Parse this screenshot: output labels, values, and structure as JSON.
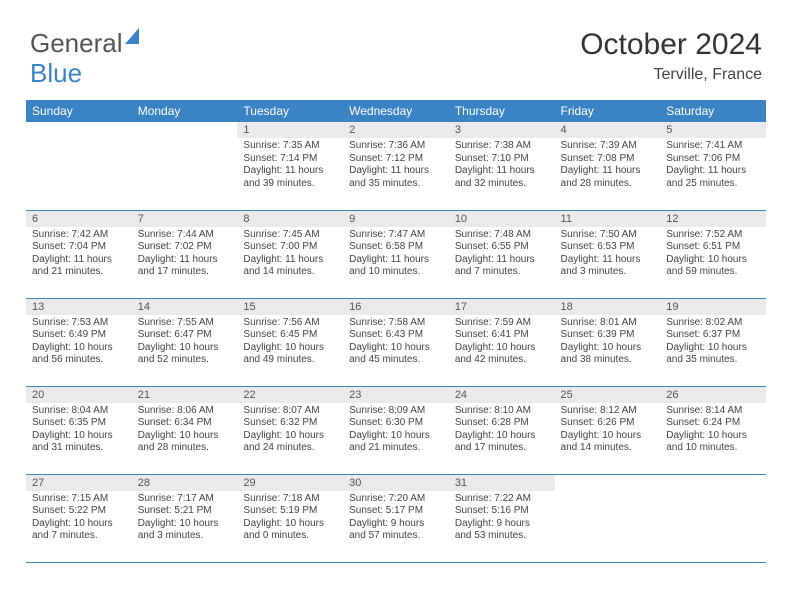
{
  "logo": {
    "part1": "General",
    "part2": "Blue"
  },
  "header": {
    "month_title": "October 2024",
    "location": "Terville, France"
  },
  "colors": {
    "header_bar": "#3a83c5",
    "daynum_bg": "#e9eaec",
    "rule": "#3a83c5",
    "text": "#444444",
    "bg": "#ffffff"
  },
  "day_headers": [
    "Sunday",
    "Monday",
    "Tuesday",
    "Wednesday",
    "Thursday",
    "Friday",
    "Saturday"
  ],
  "weeks": [
    [
      null,
      null,
      {
        "d": "1",
        "sr": "7:35 AM",
        "ss": "7:14 PM",
        "dl": "11 hours and 39 minutes."
      },
      {
        "d": "2",
        "sr": "7:36 AM",
        "ss": "7:12 PM",
        "dl": "11 hours and 35 minutes."
      },
      {
        "d": "3",
        "sr": "7:38 AM",
        "ss": "7:10 PM",
        "dl": "11 hours and 32 minutes."
      },
      {
        "d": "4",
        "sr": "7:39 AM",
        "ss": "7:08 PM",
        "dl": "11 hours and 28 minutes."
      },
      {
        "d": "5",
        "sr": "7:41 AM",
        "ss": "7:06 PM",
        "dl": "11 hours and 25 minutes."
      }
    ],
    [
      {
        "d": "6",
        "sr": "7:42 AM",
        "ss": "7:04 PM",
        "dl": "11 hours and 21 minutes."
      },
      {
        "d": "7",
        "sr": "7:44 AM",
        "ss": "7:02 PM",
        "dl": "11 hours and 17 minutes."
      },
      {
        "d": "8",
        "sr": "7:45 AM",
        "ss": "7:00 PM",
        "dl": "11 hours and 14 minutes."
      },
      {
        "d": "9",
        "sr": "7:47 AM",
        "ss": "6:58 PM",
        "dl": "11 hours and 10 minutes."
      },
      {
        "d": "10",
        "sr": "7:48 AM",
        "ss": "6:55 PM",
        "dl": "11 hours and 7 minutes."
      },
      {
        "d": "11",
        "sr": "7:50 AM",
        "ss": "6:53 PM",
        "dl": "11 hours and 3 minutes."
      },
      {
        "d": "12",
        "sr": "7:52 AM",
        "ss": "6:51 PM",
        "dl": "10 hours and 59 minutes."
      }
    ],
    [
      {
        "d": "13",
        "sr": "7:53 AM",
        "ss": "6:49 PM",
        "dl": "10 hours and 56 minutes."
      },
      {
        "d": "14",
        "sr": "7:55 AM",
        "ss": "6:47 PM",
        "dl": "10 hours and 52 minutes."
      },
      {
        "d": "15",
        "sr": "7:56 AM",
        "ss": "6:45 PM",
        "dl": "10 hours and 49 minutes."
      },
      {
        "d": "16",
        "sr": "7:58 AM",
        "ss": "6:43 PM",
        "dl": "10 hours and 45 minutes."
      },
      {
        "d": "17",
        "sr": "7:59 AM",
        "ss": "6:41 PM",
        "dl": "10 hours and 42 minutes."
      },
      {
        "d": "18",
        "sr": "8:01 AM",
        "ss": "6:39 PM",
        "dl": "10 hours and 38 minutes."
      },
      {
        "d": "19",
        "sr": "8:02 AM",
        "ss": "6:37 PM",
        "dl": "10 hours and 35 minutes."
      }
    ],
    [
      {
        "d": "20",
        "sr": "8:04 AM",
        "ss": "6:35 PM",
        "dl": "10 hours and 31 minutes."
      },
      {
        "d": "21",
        "sr": "8:06 AM",
        "ss": "6:34 PM",
        "dl": "10 hours and 28 minutes."
      },
      {
        "d": "22",
        "sr": "8:07 AM",
        "ss": "6:32 PM",
        "dl": "10 hours and 24 minutes."
      },
      {
        "d": "23",
        "sr": "8:09 AM",
        "ss": "6:30 PM",
        "dl": "10 hours and 21 minutes."
      },
      {
        "d": "24",
        "sr": "8:10 AM",
        "ss": "6:28 PM",
        "dl": "10 hours and 17 minutes."
      },
      {
        "d": "25",
        "sr": "8:12 AM",
        "ss": "6:26 PM",
        "dl": "10 hours and 14 minutes."
      },
      {
        "d": "26",
        "sr": "8:14 AM",
        "ss": "6:24 PM",
        "dl": "10 hours and 10 minutes."
      }
    ],
    [
      {
        "d": "27",
        "sr": "7:15 AM",
        "ss": "5:22 PM",
        "dl": "10 hours and 7 minutes."
      },
      {
        "d": "28",
        "sr": "7:17 AM",
        "ss": "5:21 PM",
        "dl": "10 hours and 3 minutes."
      },
      {
        "d": "29",
        "sr": "7:18 AM",
        "ss": "5:19 PM",
        "dl": "10 hours and 0 minutes."
      },
      {
        "d": "30",
        "sr": "7:20 AM",
        "ss": "5:17 PM",
        "dl": "9 hours and 57 minutes."
      },
      {
        "d": "31",
        "sr": "7:22 AM",
        "ss": "5:16 PM",
        "dl": "9 hours and 53 minutes."
      },
      null,
      null
    ]
  ],
  "labels": {
    "sunrise": "Sunrise:",
    "sunset": "Sunset:",
    "daylight": "Daylight:"
  }
}
